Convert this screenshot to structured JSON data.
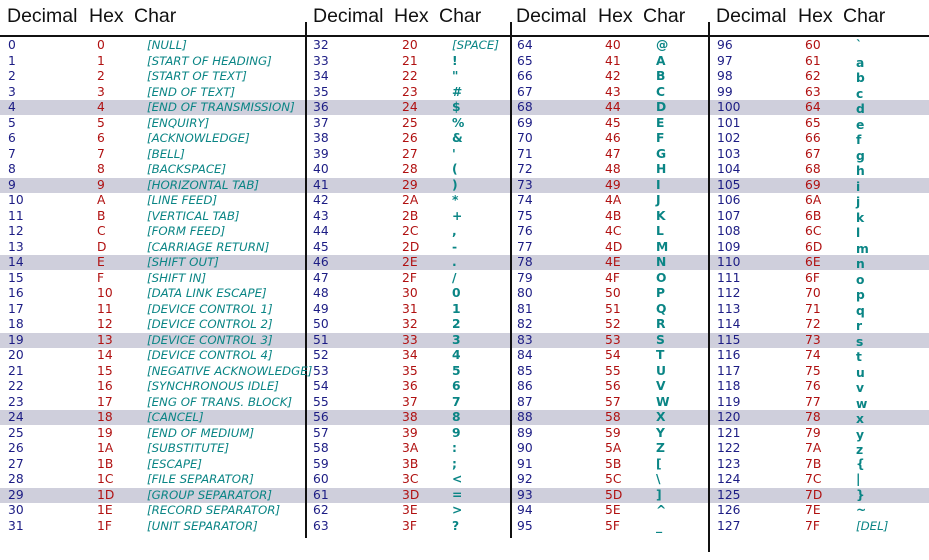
{
  "headers": {
    "decimal": "Decimal",
    "hex": "Hex",
    "char": "Char"
  },
  "colors": {
    "decimal": "#1c1c84",
    "hex": "#b01010",
    "char": "#0a8585",
    "highlight": "#cfcfdc"
  },
  "highlighted_rows": [
    4,
    9,
    14,
    19,
    24,
    29
  ],
  "blocks": [
    {
      "rows": [
        [
          "0",
          "0",
          "[NULL]"
        ],
        [
          "1",
          "1",
          "[START OF HEADING]"
        ],
        [
          "2",
          "2",
          "[START OF TEXT]"
        ],
        [
          "3",
          "3",
          "[END OF TEXT]"
        ],
        [
          "4",
          "4",
          "[END OF TRANSMISSION]"
        ],
        [
          "5",
          "5",
          "[ENQUIRY]"
        ],
        [
          "6",
          "6",
          "[ACKNOWLEDGE]"
        ],
        [
          "7",
          "7",
          "[BELL]"
        ],
        [
          "8",
          "8",
          "[BACKSPACE]"
        ],
        [
          "9",
          "9",
          "[HORIZONTAL TAB]"
        ],
        [
          "10",
          "A",
          "[LINE FEED]"
        ],
        [
          "11",
          "B",
          "[VERTICAL TAB]"
        ],
        [
          "12",
          "C",
          "[FORM FEED]"
        ],
        [
          "13",
          "D",
          "[CARRIAGE RETURN]"
        ],
        [
          "14",
          "E",
          "[SHIFT OUT]"
        ],
        [
          "15",
          "F",
          "[SHIFT IN]"
        ],
        [
          "16",
          "10",
          "[DATA LINK ESCAPE]"
        ],
        [
          "17",
          "11",
          "[DEVICE CONTROL 1]"
        ],
        [
          "18",
          "12",
          "[DEVICE CONTROL 2]"
        ],
        [
          "19",
          "13",
          "[DEVICE CONTROL 3]"
        ],
        [
          "20",
          "14",
          "[DEVICE CONTROL 4]"
        ],
        [
          "21",
          "15",
          "[NEGATIVE ACKNOWLEDGE]"
        ],
        [
          "22",
          "16",
          "[SYNCHRONOUS IDLE]"
        ],
        [
          "23",
          "17",
          "[ENG OF TRANS. BLOCK]"
        ],
        [
          "24",
          "18",
          "[CANCEL]"
        ],
        [
          "25",
          "19",
          "[END OF MEDIUM]"
        ],
        [
          "26",
          "1A",
          "[SUBSTITUTE]"
        ],
        [
          "27",
          "1B",
          "[ESCAPE]"
        ],
        [
          "28",
          "1C",
          "[FILE SEPARATOR]"
        ],
        [
          "29",
          "1D",
          "[GROUP SEPARATOR]"
        ],
        [
          "30",
          "1E",
          "[RECORD SEPARATOR]"
        ],
        [
          "31",
          "1F",
          "[UNIT SEPARATOR]"
        ]
      ]
    },
    {
      "rows": [
        [
          "32",
          "20",
          "[SPACE]"
        ],
        [
          "33",
          "21",
          "!"
        ],
        [
          "34",
          "22",
          "\""
        ],
        [
          "35",
          "23",
          "#"
        ],
        [
          "36",
          "24",
          "$"
        ],
        [
          "37",
          "25",
          "%"
        ],
        [
          "38",
          "26",
          "&"
        ],
        [
          "39",
          "27",
          "'"
        ],
        [
          "40",
          "28",
          "("
        ],
        [
          "41",
          "29",
          ")"
        ],
        [
          "42",
          "2A",
          "*"
        ],
        [
          "43",
          "2B",
          "+"
        ],
        [
          "44",
          "2C",
          ","
        ],
        [
          "45",
          "2D",
          "-"
        ],
        [
          "46",
          "2E",
          "."
        ],
        [
          "47",
          "2F",
          "/"
        ],
        [
          "48",
          "30",
          "0"
        ],
        [
          "49",
          "31",
          "1"
        ],
        [
          "50",
          "32",
          "2"
        ],
        [
          "51",
          "33",
          "3"
        ],
        [
          "52",
          "34",
          "4"
        ],
        [
          "53",
          "35",
          "5"
        ],
        [
          "54",
          "36",
          "6"
        ],
        [
          "55",
          "37",
          "7"
        ],
        [
          "56",
          "38",
          "8"
        ],
        [
          "57",
          "39",
          "9"
        ],
        [
          "58",
          "3A",
          ":"
        ],
        [
          "59",
          "3B",
          ";"
        ],
        [
          "60",
          "3C",
          "<"
        ],
        [
          "61",
          "3D",
          "="
        ],
        [
          "62",
          "3E",
          ">"
        ],
        [
          "63",
          "3F",
          "?"
        ]
      ]
    },
    {
      "rows": [
        [
          "64",
          "40",
          "@"
        ],
        [
          "65",
          "41",
          "A"
        ],
        [
          "66",
          "42",
          "B"
        ],
        [
          "67",
          "43",
          "C"
        ],
        [
          "68",
          "44",
          "D"
        ],
        [
          "69",
          "45",
          "E"
        ],
        [
          "70",
          "46",
          "F"
        ],
        [
          "71",
          "47",
          "G"
        ],
        [
          "72",
          "48",
          "H"
        ],
        [
          "73",
          "49",
          "I"
        ],
        [
          "74",
          "4A",
          "J"
        ],
        [
          "75",
          "4B",
          "K"
        ],
        [
          "76",
          "4C",
          "L"
        ],
        [
          "77",
          "4D",
          "M"
        ],
        [
          "78",
          "4E",
          "N"
        ],
        [
          "79",
          "4F",
          "O"
        ],
        [
          "80",
          "50",
          "P"
        ],
        [
          "81",
          "51",
          "Q"
        ],
        [
          "82",
          "52",
          "R"
        ],
        [
          "83",
          "53",
          "S"
        ],
        [
          "84",
          "54",
          "T"
        ],
        [
          "85",
          "55",
          "U"
        ],
        [
          "86",
          "56",
          "V"
        ],
        [
          "87",
          "57",
          "W"
        ],
        [
          "88",
          "58",
          "X"
        ],
        [
          "89",
          "59",
          "Y"
        ],
        [
          "90",
          "5A",
          "Z"
        ],
        [
          "91",
          "5B",
          "["
        ],
        [
          "92",
          "5C",
          "\\"
        ],
        [
          "93",
          "5D",
          "]"
        ],
        [
          "94",
          "5E",
          "^"
        ],
        [
          "95",
          "5F",
          "_"
        ]
      ]
    },
    {
      "rows": [
        [
          "96",
          "60",
          "`"
        ],
        [
          "97",
          "61",
          "a"
        ],
        [
          "98",
          "62",
          "b"
        ],
        [
          "99",
          "63",
          "c"
        ],
        [
          "100",
          "64",
          "d"
        ],
        [
          "101",
          "65",
          "e"
        ],
        [
          "102",
          "66",
          "f"
        ],
        [
          "103",
          "67",
          "g"
        ],
        [
          "104",
          "68",
          "h"
        ],
        [
          "105",
          "69",
          "i"
        ],
        [
          "106",
          "6A",
          "j"
        ],
        [
          "107",
          "6B",
          "k"
        ],
        [
          "108",
          "6C",
          "l"
        ],
        [
          "109",
          "6D",
          "m"
        ],
        [
          "110",
          "6E",
          "n"
        ],
        [
          "111",
          "6F",
          "o"
        ],
        [
          "112",
          "70",
          "p"
        ],
        [
          "113",
          "71",
          "q"
        ],
        [
          "114",
          "72",
          "r"
        ],
        [
          "115",
          "73",
          "s"
        ],
        [
          "116",
          "74",
          "t"
        ],
        [
          "117",
          "75",
          "u"
        ],
        [
          "118",
          "76",
          "v"
        ],
        [
          "119",
          "77",
          "w"
        ],
        [
          "120",
          "78",
          "x"
        ],
        [
          "121",
          "79",
          "y"
        ],
        [
          "122",
          "7A",
          "z"
        ],
        [
          "123",
          "7B",
          "{"
        ],
        [
          "124",
          "7C",
          "|"
        ],
        [
          "125",
          "7D",
          "}"
        ],
        [
          "126",
          "7E",
          "~"
        ],
        [
          "127",
          "7F",
          "[DEL]"
        ]
      ]
    }
  ]
}
